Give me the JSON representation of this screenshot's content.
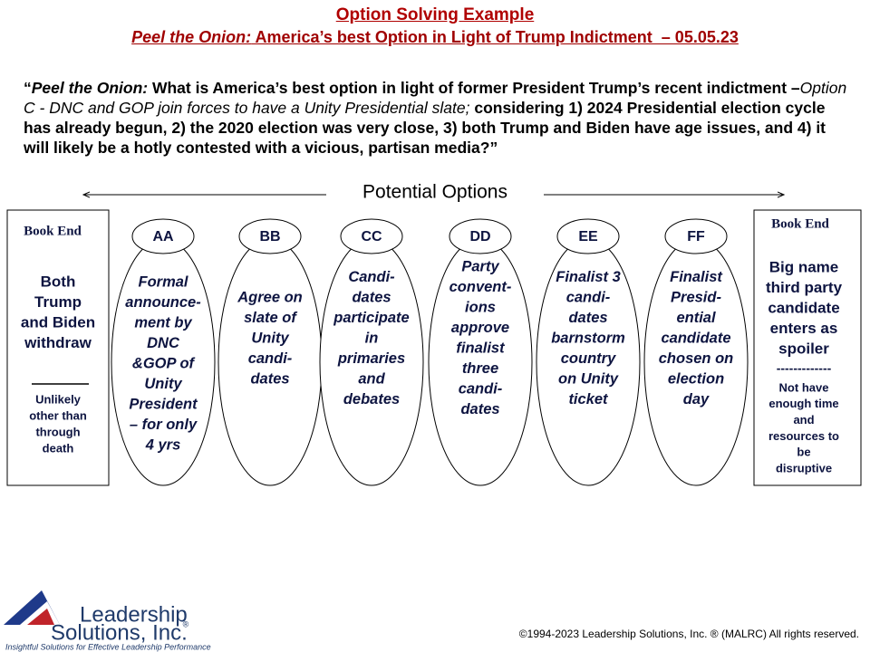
{
  "header": {
    "title": "Option Solving Example",
    "subtitle_lead": "Peel the Onion:",
    "subtitle_rest": " America’s best Option in Light of Trump Indictment  – 05.05.23"
  },
  "question": {
    "open": "“",
    "lead": "Peel the Onion:",
    "text1": " What is America’s best option in light of former President Trump’s recent indictment –",
    "option": "Option C - DNC and GOP join forces to have a Unity Presidential slate;",
    "text2": " considering 1) 2024 Presidential election cycle has already begun, 2) the 2020 election was very close, 3) both Trump and Biden have age issues, and 4) it will likely be a hotly contested with a vicious, partisan media?”"
  },
  "banner": "Potential Options",
  "left_bookend": {
    "label": "Book End",
    "lines": [
      "Both",
      "Trump",
      "and Biden",
      "withdraw"
    ],
    "note": [
      "Unlikely",
      "other than",
      "through",
      "death"
    ]
  },
  "options": [
    {
      "label": "AA",
      "lines": [
        "Formal",
        "announce-",
        "ment by",
        "DNC",
        "&GOP of",
        "Unity",
        "President",
        "– for only",
        "4 yrs"
      ]
    },
    {
      "label": "BB",
      "lines": [
        "Agree on",
        "slate of",
        "Unity",
        "candi-",
        "dates"
      ]
    },
    {
      "label": "CC",
      "lines": [
        "Candi-",
        "dates",
        "participate",
        "in",
        "primaries",
        "and",
        "debates"
      ]
    },
    {
      "label": "DD",
      "lines": [
        "Party",
        "convent-",
        "ions",
        "approve",
        "finalist",
        "three",
        "candi-",
        "dates"
      ]
    },
    {
      "label": "EE",
      "lines": [
        "Finalist 3",
        "candi-",
        "dates",
        "barnstorm",
        "country",
        "on Unity",
        "ticket"
      ]
    },
    {
      "label": "FF",
      "lines": [
        "Finalist",
        "Presid-",
        "ential",
        "candidate",
        "chosen on",
        "election",
        "day"
      ]
    }
  ],
  "right_bookend": {
    "label": "Book End",
    "lines": [
      "Big name",
      "third party",
      "candidate",
      "enters as",
      "spoiler"
    ],
    "separator": "-------------",
    "note": [
      "Not have",
      "enough time",
      "and",
      "resources to",
      "be",
      "disruptive"
    ]
  },
  "logo": {
    "line1": "Leadership",
    "line2": "Solutions, Inc.",
    "mark": "®",
    "tagline": "Insightful Solutions for Effective Leadership Performance"
  },
  "footer": "©1994-2023 Leadership Solutions, Inc. ® (MALRC)  All rights reserved."
}
